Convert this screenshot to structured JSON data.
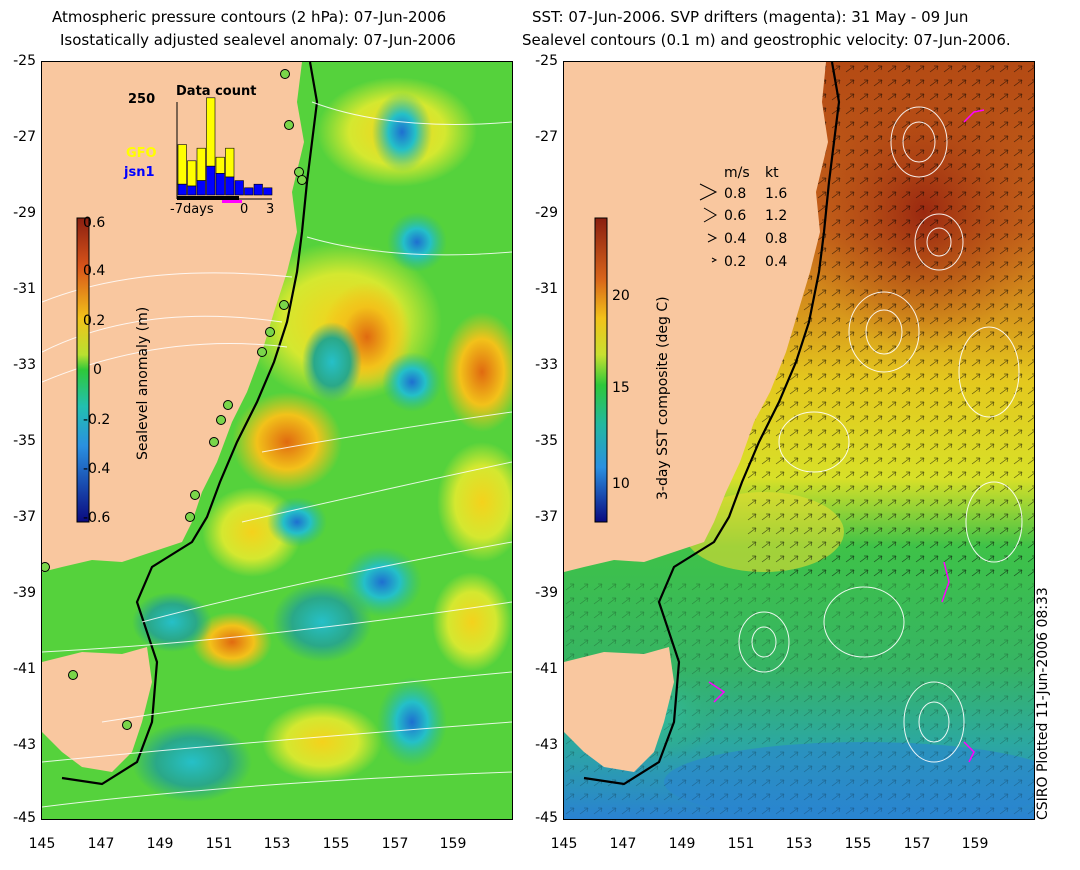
{
  "left": {
    "title_line1": "Atmospheric pressure contours (2 hPa): 07-Jun-2006",
    "title_line2": "Isostatically adjusted sealevel anomaly: 07-Jun-2006",
    "colorbar_label": "Sealevel anomaly (m)",
    "colorbar_ticks": [
      "0.6",
      "0.4",
      "0.2",
      "0",
      "-0.2",
      "-0.4",
      "-0.6"
    ],
    "inset": {
      "title": "Data count",
      "ymax_label": "250",
      "x_labels": [
        "-7days",
        "0",
        "3"
      ],
      "legend": [
        {
          "name": "GFO",
          "color": "#ffff00"
        },
        {
          "name": "jsn1",
          "color": "#0000ff"
        }
      ],
      "gfo_counts": [
        110,
        70,
        90,
        190,
        45,
        80,
        0,
        0,
        0,
        0
      ],
      "jsn_counts": [
        30,
        25,
        40,
        80,
        60,
        50,
        40,
        20,
        30,
        20
      ]
    }
  },
  "right": {
    "title_line1": "SST: 07-Jun-2006. SVP drifters (magenta): 31 May - 09 Jun",
    "title_line2": "Sealevel contours (0.1 m) and geostrophic velocity: 07-Jun-2006.",
    "colorbar_label": "3-day SST composite (deg C)",
    "colorbar_ticks": [
      "20",
      "15",
      "10"
    ],
    "velocity_legend": {
      "header_ms": "m/s",
      "header_kt": "kt",
      "rows": [
        {
          "ms": "0.8",
          "kt": "1.6"
        },
        {
          "ms": "0.6",
          "kt": "1.2"
        },
        {
          "ms": "0.4",
          "kt": "0.8"
        },
        {
          "ms": "0.2",
          "kt": "0.4"
        }
      ]
    }
  },
  "axes": {
    "y_ticks": [
      "-25",
      "-27",
      "-29",
      "-31",
      "-33",
      "-35",
      "-37",
      "-39",
      "-41",
      "-43",
      "-45"
    ],
    "x_ticks": [
      "145",
      "147",
      "149",
      "151",
      "153",
      "155",
      "157",
      "159"
    ]
  },
  "credit": "CSIRO Plotted 11-Jun-2006 08:33",
  "colors": {
    "land": "#f9c79f",
    "ocean_green": "#3fd24a",
    "sst_warm": "#c45b1a",
    "sst_cool": "#2f9ad0"
  }
}
